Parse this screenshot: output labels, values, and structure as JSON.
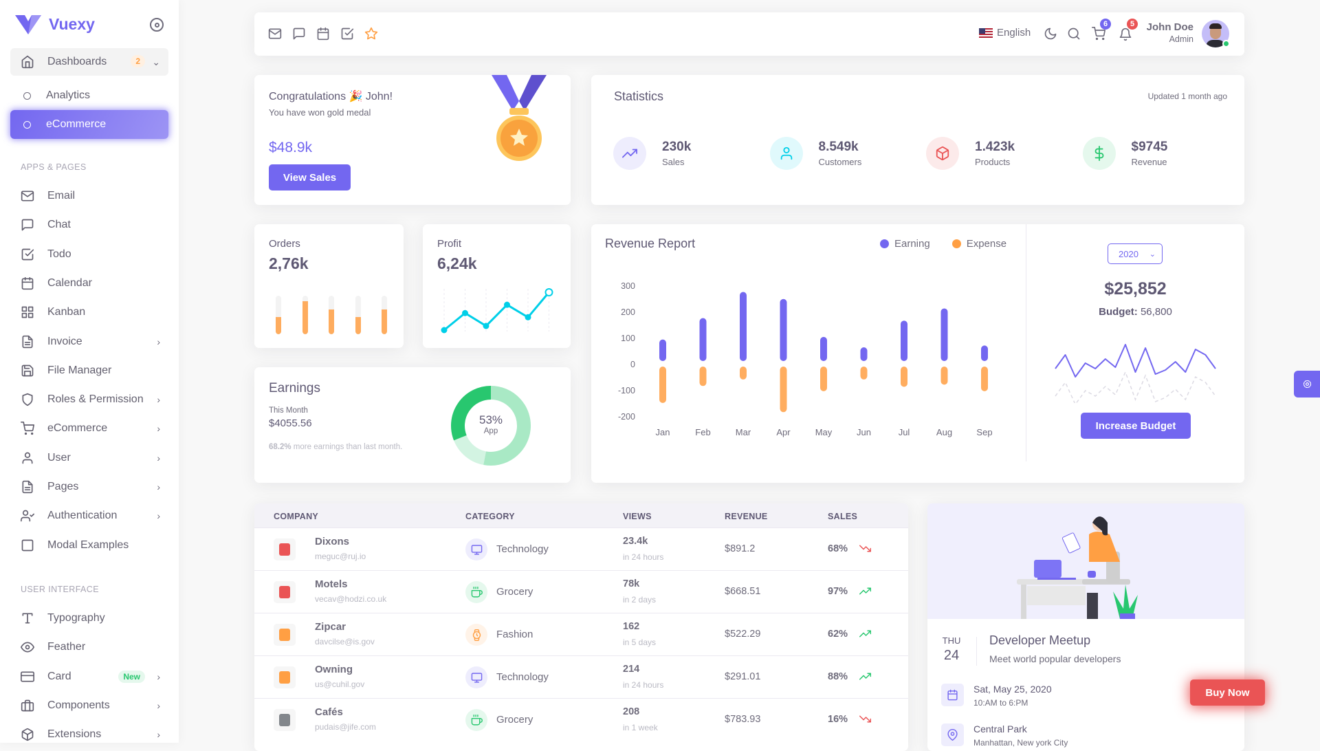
{
  "brand": {
    "name": "Vuexy"
  },
  "sidebar": {
    "dashboards": {
      "label": "Dashboards",
      "badge": "2"
    },
    "sub": [
      {
        "label": "Analytics"
      },
      {
        "label": "eCommerce"
      }
    ],
    "section1": "APPS & PAGES",
    "apps": [
      {
        "label": "Email",
        "icon": "mail",
        "chev": false
      },
      {
        "label": "Chat",
        "icon": "chat",
        "chev": false
      },
      {
        "label": "Todo",
        "icon": "check-square",
        "chev": false
      },
      {
        "label": "Calendar",
        "icon": "calendar",
        "chev": false
      },
      {
        "label": "Kanban",
        "icon": "grid",
        "chev": false
      },
      {
        "label": "Invoice",
        "icon": "file",
        "chev": true
      },
      {
        "label": "File Manager",
        "icon": "save",
        "chev": false
      },
      {
        "label": "Roles & Permission",
        "icon": "shield",
        "chev": true
      },
      {
        "label": "eCommerce",
        "icon": "cart",
        "chev": true
      },
      {
        "label": "User",
        "icon": "user",
        "chev": true
      },
      {
        "label": "Pages",
        "icon": "file",
        "chev": true
      },
      {
        "label": "Authentication",
        "icon": "user-check",
        "chev": true
      },
      {
        "label": "Modal Examples",
        "icon": "square",
        "chev": false
      }
    ],
    "section2": "USER INTERFACE",
    "ui": [
      {
        "label": "Typography",
        "icon": "type",
        "chev": false
      },
      {
        "label": "Feather",
        "icon": "eye",
        "chev": false
      },
      {
        "label": "Card",
        "icon": "credit-card",
        "chev": true,
        "badge": "New"
      },
      {
        "label": "Components",
        "icon": "briefcase",
        "chev": true
      },
      {
        "label": "Extensions",
        "icon": "box",
        "chev": true
      }
    ]
  },
  "navbar": {
    "language": "English",
    "cart_count": "6",
    "notif_count": "5",
    "user_name": "John Doe",
    "user_role": "Admin"
  },
  "congrats": {
    "title": "Congratulations 🎉 John!",
    "subtitle": "You have won gold medal",
    "amount": "$48.9k",
    "button": "View Sales"
  },
  "statistics": {
    "title": "Statistics",
    "updated": "Updated 1 month ago",
    "items": [
      {
        "value": "230k",
        "label": "Sales",
        "icon": "trending-up",
        "color": "#7367f0",
        "bg": "#eeedfd"
      },
      {
        "value": "8.549k",
        "label": "Customers",
        "icon": "user",
        "color": "#00cfe8",
        "bg": "#e0f9fc"
      },
      {
        "value": "1.423k",
        "label": "Products",
        "icon": "box",
        "color": "#ea5455",
        "bg": "#fceaea"
      },
      {
        "value": "$9745",
        "label": "Revenue",
        "icon": "dollar",
        "color": "#28c76f",
        "bg": "#e5f8ed"
      }
    ]
  },
  "orders": {
    "title": "Orders",
    "value": "2,76k",
    "bars": [
      0.45,
      0.85,
      0.65,
      0.45,
      0.65
    ]
  },
  "profit": {
    "title": "Profit",
    "value": "6,24k",
    "points": [
      0,
      45,
      11,
      67,
      34,
      100
    ]
  },
  "earnings": {
    "title": "Earnings",
    "period": "This Month",
    "amount": "$4055.56",
    "highlight": "68.2%",
    "note": " more earnings than last month.",
    "donut_value": "53%",
    "donut_label": "App",
    "segments": [
      53,
      16,
      31
    ]
  },
  "chart_data": {
    "type": "bar",
    "title": "Revenue Report",
    "categories": [
      "Jan",
      "Feb",
      "Mar",
      "Apr",
      "May",
      "Jun",
      "Jul",
      "Aug",
      "Sep"
    ],
    "series": [
      {
        "name": "Earning",
        "color": "#7367f0",
        "values": [
          93,
          175,
          275,
          248,
          103,
          63,
          165,
          212,
          70
        ]
      },
      {
        "name": "Expense",
        "color": "#ff9f43",
        "values": [
          -150,
          -85,
          -60,
          -185,
          -105,
          -60,
          -88,
          -80,
          -105
        ]
      }
    ],
    "yticks": [
      "300",
      "200",
      "100",
      "0",
      "-100",
      "-200"
    ],
    "ylim": [
      -200,
      300
    ]
  },
  "budget": {
    "year": "2020",
    "amount": "$25,852",
    "label": "Budget:",
    "value": " 56,800",
    "button": "Increase Budget",
    "line": [
      50,
      30,
      62,
      42,
      50,
      36,
      48,
      15,
      55,
      20,
      58,
      52,
      40,
      55,
      22,
      30,
      50
    ]
  },
  "table": {
    "headers": [
      "COMPANY",
      "CATEGORY",
      "VIEWS",
      "REVENUE",
      "SALES"
    ],
    "rows": [
      {
        "name": "Dixons",
        "email": "meguc@ruj.io",
        "category": "Technology",
        "cat_icon": "monitor",
        "views": "23.4k",
        "views_time": "in 24 hours",
        "revenue": "$891.2",
        "sales": "68%",
        "trend": "down",
        "logo": "#ea5455"
      },
      {
        "name": "Motels",
        "email": "vecav@hodzi.co.uk",
        "category": "Grocery",
        "cat_icon": "coffee",
        "views": "78k",
        "views_time": "in 2 days",
        "revenue": "$668.51",
        "sales": "97%",
        "trend": "up",
        "logo": "#ea5455"
      },
      {
        "name": "Zipcar",
        "email": "davcilse@is.gov",
        "category": "Fashion",
        "cat_icon": "watch",
        "views": "162",
        "views_time": "in 5 days",
        "revenue": "$522.29",
        "sales": "62%",
        "trend": "up",
        "logo": "#ff9f43"
      },
      {
        "name": "Owning",
        "email": "us@cuhil.gov",
        "category": "Technology",
        "cat_icon": "monitor",
        "views": "214",
        "views_time": "in 24 hours",
        "revenue": "$291.01",
        "sales": "88%",
        "trend": "up",
        "logo": "#ff9f43"
      },
      {
        "name": "Cafés",
        "email": "pudais@jife.com",
        "category": "Grocery",
        "cat_icon": "coffee",
        "views": "208",
        "views_time": "in 1 week",
        "revenue": "$783.93",
        "sales": "16%",
        "trend": "down",
        "logo": "#82868b"
      }
    ]
  },
  "meetup": {
    "day": "THU",
    "date": "24",
    "title": "Developer Meetup",
    "subtitle": "Meet world popular developers",
    "when": "Sat, May 25, 2020",
    "time": "10:AM to 6:PM",
    "where": "Central Park",
    "where_sub": "Manhattan, New york City"
  },
  "buy_now": "Buy Now"
}
